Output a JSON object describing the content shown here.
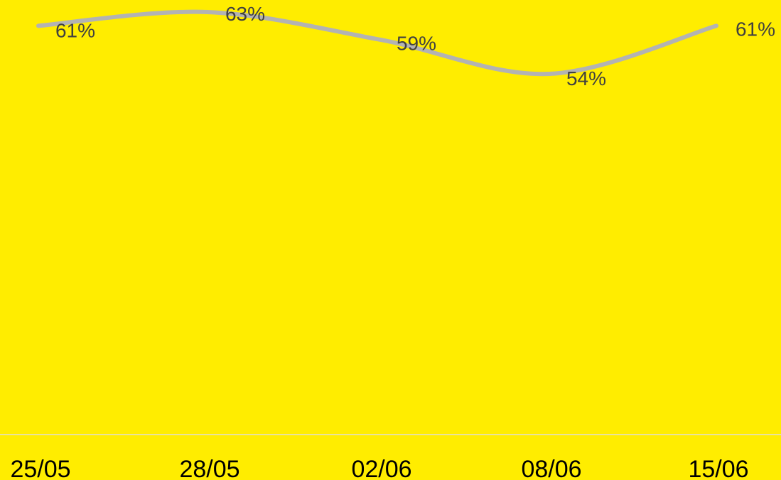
{
  "chart_data": {
    "type": "line",
    "categories": [
      "25/05",
      "28/05",
      "02/06",
      "08/06",
      "15/06"
    ],
    "series": [
      {
        "values": [
          61,
          63,
          59,
          54,
          61
        ],
        "data_labels": [
          "61%",
          "63%",
          "59%",
          "54%",
          "61%"
        ],
        "color": "#B3B3B3"
      }
    ],
    "title": "",
    "xlabel": "",
    "ylabel": "",
    "ylim": [
      0,
      65
    ],
    "smooth": true,
    "grid": false,
    "legend": "none"
  },
  "colors": {
    "background": "#FFED00",
    "line": "#B3B3B3",
    "axis": "#E6E2A0",
    "data_label": "#404040",
    "tick_label": "#000000"
  }
}
